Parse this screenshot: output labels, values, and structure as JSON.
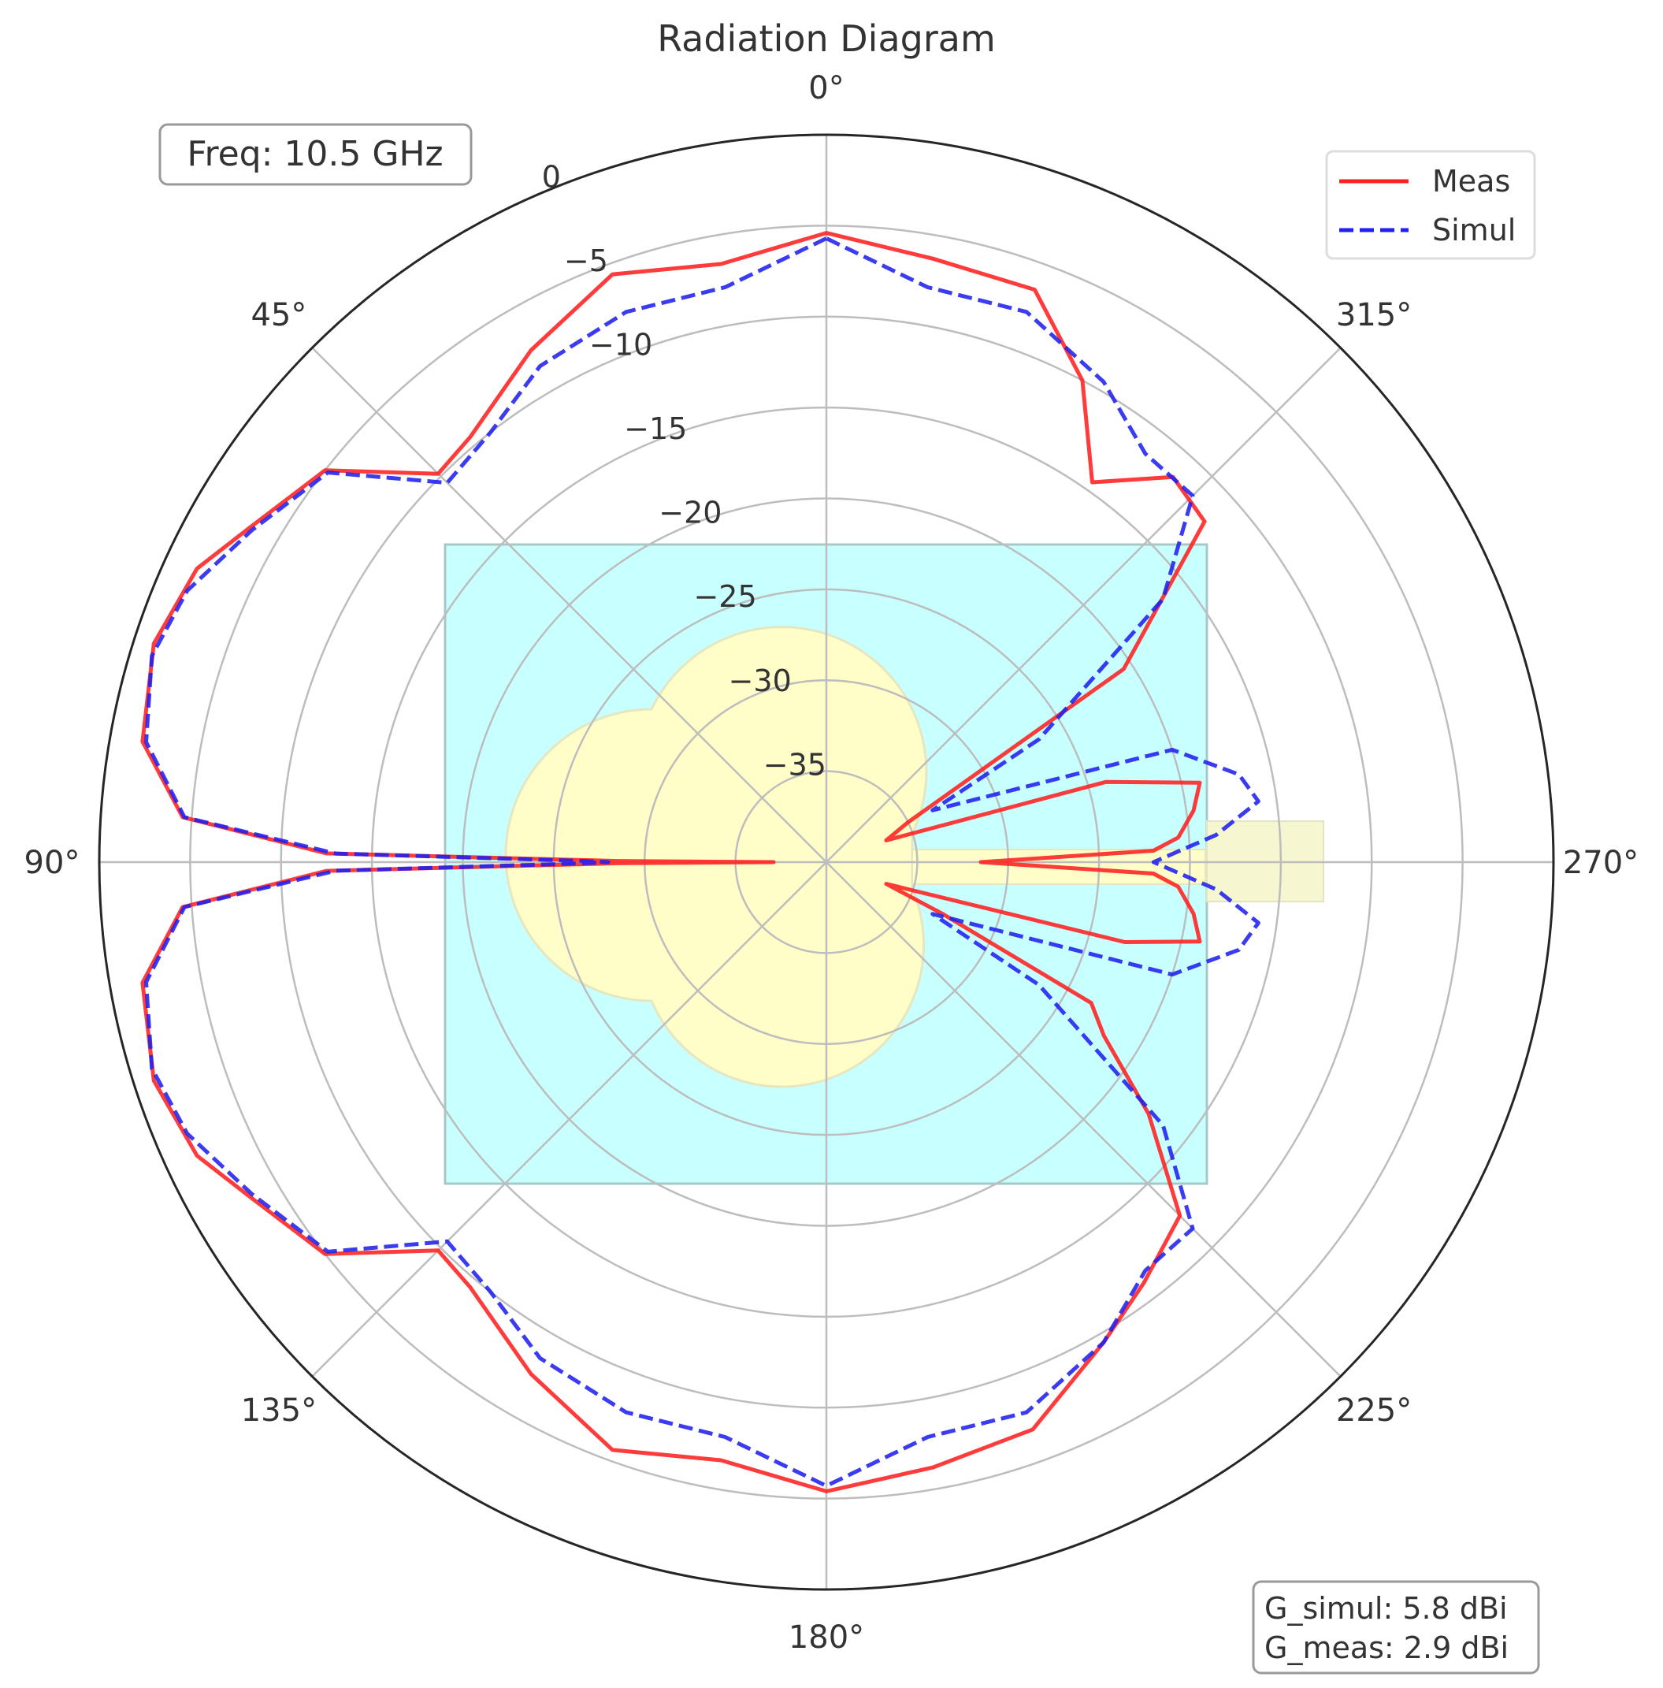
{
  "chart_data": {
    "type": "polar-line",
    "title": "Radiation Diagram",
    "theta_direction": "counterclockwise",
    "theta_zero": "top",
    "r_unit": "dB",
    "rlim": [
      -40,
      0
    ],
    "r_ticks": [
      0,
      -5,
      -10,
      -15,
      -20,
      -25,
      -30,
      -35
    ],
    "r_tick_labels": [
      "0",
      "−5",
      "−10",
      "−15",
      "−20",
      "−25",
      "−30",
      "−35"
    ],
    "theta_ticks": [
      0,
      45,
      90,
      135,
      180,
      225,
      270,
      315
    ],
    "theta_tick_labels": [
      "0°",
      "45°",
      "90°",
      "135°",
      "180°",
      "225°",
      "270°",
      "315°"
    ],
    "grid": true,
    "legend_position": "top-right",
    "annotations": {
      "frequency": "Freq: 10.5 GHz",
      "gain_simul": "G_simul: 5.8 dBi",
      "gain_meas": "G_meas: 2.9 dBi"
    },
    "series": [
      {
        "name": "Meas",
        "color": "#ff2020",
        "style": "solid",
        "points": [
          [
            0,
            -5.4
          ],
          [
            10,
            -6.6
          ],
          [
            20,
            -5.6
          ],
          [
            30,
            -7.5
          ],
          [
            40,
            -9.5
          ],
          [
            45,
            -9.8
          ],
          [
            52,
            -5.0
          ],
          [
            60,
            -3.3
          ],
          [
            65,
            -1.8
          ],
          [
            72,
            -1.1
          ],
          [
            80,
            -1.8
          ],
          [
            86,
            -4.5
          ],
          [
            89,
            -12.5
          ],
          [
            89.7,
            -28.5
          ],
          [
            90,
            -37.1
          ],
          [
            90.3,
            -28.5
          ],
          [
            91,
            -12.5
          ],
          [
            94,
            -4.5
          ],
          [
            100,
            -1.8
          ],
          [
            108,
            -1.1
          ],
          [
            115,
            -1.8
          ],
          [
            120,
            -3.3
          ],
          [
            128,
            -5.0
          ],
          [
            135,
            -9.8
          ],
          [
            140,
            -9.5
          ],
          [
            150,
            -7.5
          ],
          [
            160,
            -5.6
          ],
          [
            170,
            -6.6
          ],
          [
            180,
            -5.4
          ],
          [
            190,
            -6.2
          ],
          [
            200,
            -6.8
          ],
          [
            210,
            -9.5
          ],
          [
            217,
            -11.0
          ],
          [
            225,
            -12.5
          ],
          [
            232,
            -17.5
          ],
          [
            238,
            -22.0
          ],
          [
            242,
            -23.5
          ],
          [
            246,
            -33.0
          ],
          [
            250,
            -36.5
          ],
          [
            255,
            -23.0
          ],
          [
            258,
            -19.0
          ],
          [
            262,
            -19.6
          ],
          [
            266,
            -20.6
          ],
          [
            268,
            -22.0
          ],
          [
            270,
            -31.5
          ],
          [
            272,
            -22.0
          ],
          [
            274,
            -20.6
          ],
          [
            278,
            -19.6
          ],
          [
            282,
            -19.0
          ],
          [
            286,
            -24.0
          ],
          [
            290,
            -36.5
          ],
          [
            296,
            -35.0
          ],
          [
            303,
            -20.5
          ],
          [
            312,
            -12.0
          ],
          [
            318,
            -11.5
          ],
          [
            325,
            -14.5
          ],
          [
            332,
            -10.0
          ],
          [
            340,
            -6.5
          ],
          [
            350,
            -6.3
          ]
        ]
      },
      {
        "name": "Simul",
        "color": "#2020f0",
        "style": "dashed",
        "points": [
          [
            0,
            -5.7
          ],
          [
            10,
            -7.9
          ],
          [
            20,
            -7.8
          ],
          [
            30,
            -8.5
          ],
          [
            38,
            -10.0
          ],
          [
            45,
            -10.5
          ],
          [
            52,
            -5.2
          ],
          [
            60,
            -3.5
          ],
          [
            67,
            -1.8
          ],
          [
            73,
            -1.2
          ],
          [
            80,
            -2.0
          ],
          [
            86,
            -4.6
          ],
          [
            89,
            -13.0
          ],
          [
            89.7,
            -26.5
          ],
          [
            90,
            -28.0
          ],
          [
            90.3,
            -26.5
          ],
          [
            91,
            -13.0
          ],
          [
            94,
            -4.6
          ],
          [
            100,
            -2.0
          ],
          [
            107,
            -1.2
          ],
          [
            113,
            -1.8
          ],
          [
            120,
            -3.5
          ],
          [
            128,
            -5.2
          ],
          [
            135,
            -10.5
          ],
          [
            142,
            -10.0
          ],
          [
            150,
            -8.5
          ],
          [
            160,
            -7.8
          ],
          [
            170,
            -7.9
          ],
          [
            180,
            -5.7
          ],
          [
            190,
            -7.9
          ],
          [
            200,
            -7.8
          ],
          [
            210,
            -9.5
          ],
          [
            218,
            -11.5
          ],
          [
            225,
            -11.5
          ],
          [
            232,
            -16.5
          ],
          [
            240,
            -26.5
          ],
          [
            244,
            -33.5
          ],
          [
            252,
            -20.0
          ],
          [
            258,
            -16.8
          ],
          [
            262,
            -16.0
          ],
          [
            266,
            -18.5
          ],
          [
            270,
            -22.0
          ],
          [
            274,
            -18.5
          ],
          [
            278,
            -16.0
          ],
          [
            282,
            -16.8
          ],
          [
            288,
            -20.0
          ],
          [
            296,
            -33.5
          ],
          [
            300,
            -26.5
          ],
          [
            308,
            -16.5
          ],
          [
            315,
            -11.5
          ],
          [
            322,
            -11.5
          ],
          [
            330,
            -9.5
          ],
          [
            340,
            -7.8
          ],
          [
            350,
            -7.9
          ]
        ]
      }
    ]
  }
}
